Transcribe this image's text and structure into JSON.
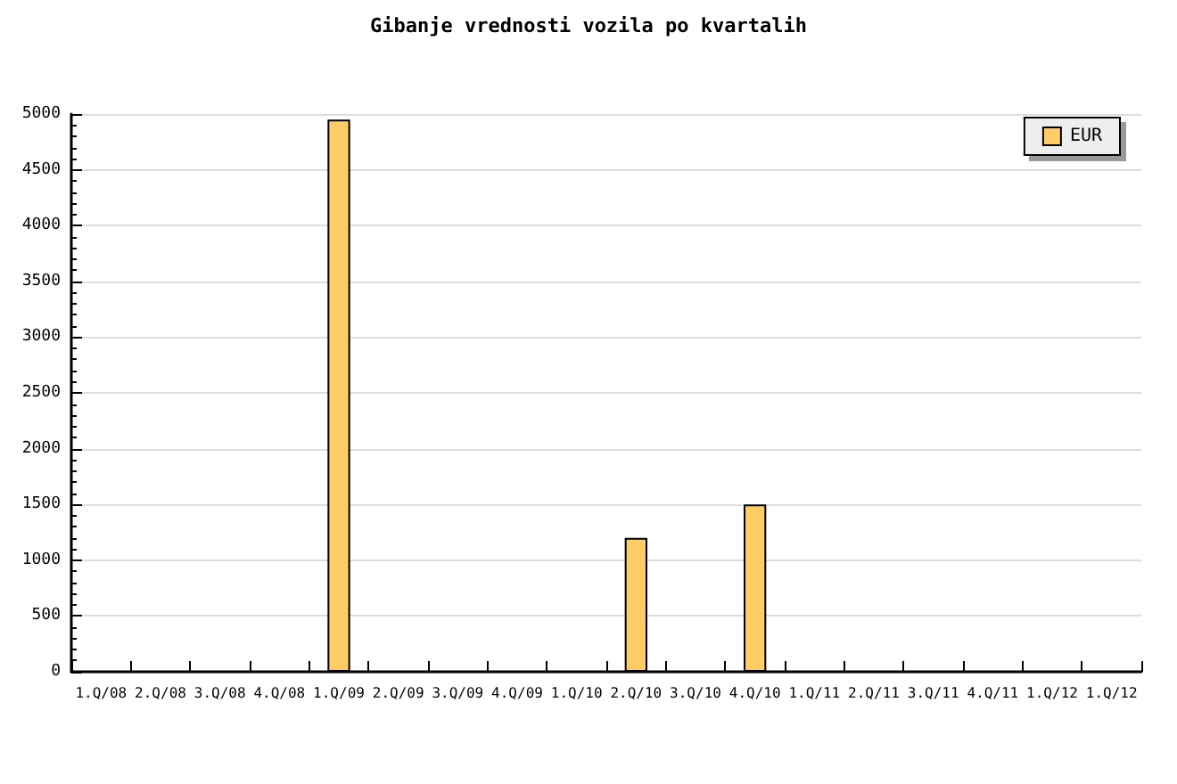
{
  "chart_data": {
    "type": "bar",
    "title": "Gibanje vrednosti vozila po kvartalih",
    "categories": [
      "1.Q/08",
      "2.Q/08",
      "3.Q/08",
      "4.Q/08",
      "1.Q/09",
      "2.Q/09",
      "3.Q/09",
      "4.Q/09",
      "1.Q/10",
      "2.Q/10",
      "3.Q/10",
      "4.Q/10",
      "1.Q/11",
      "2.Q/11",
      "3.Q/11",
      "4.Q/11",
      "1.Q/12",
      "1.Q/12"
    ],
    "series": [
      {
        "name": "EUR",
        "color": "#ffcc66",
        "values": [
          null,
          null,
          null,
          null,
          4950,
          null,
          null,
          null,
          null,
          1200,
          null,
          1500,
          null,
          null,
          null,
          null,
          null,
          null
        ]
      }
    ],
    "ylim": [
      0,
      5000
    ],
    "yticks": [
      0,
      500,
      1000,
      1500,
      2000,
      2500,
      3000,
      3500,
      4000,
      4500,
      5000
    ],
    "grid": "y",
    "legend": "top right"
  }
}
